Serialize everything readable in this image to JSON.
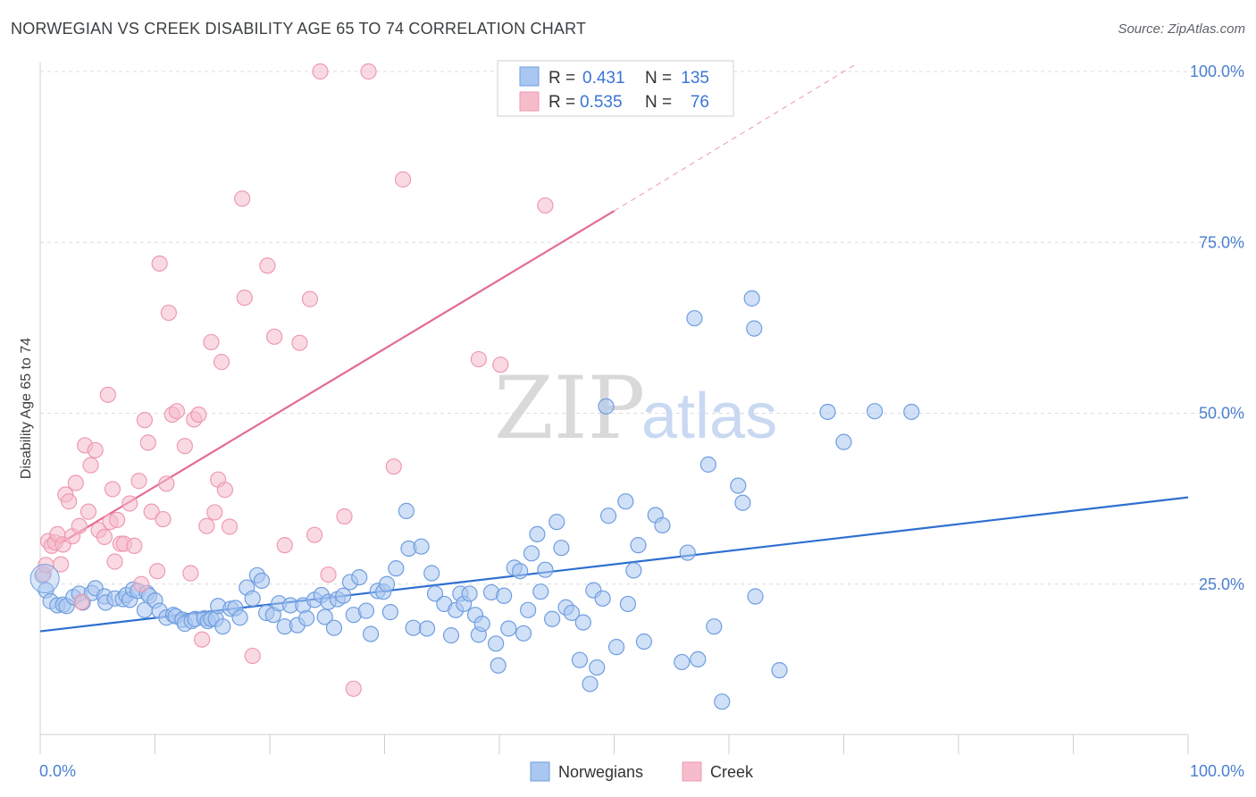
{
  "title": "NORWEGIAN VS CREEK DISABILITY AGE 65 TO 74 CORRELATION CHART",
  "source": "Source: ZipAtlas.com",
  "watermark": {
    "part1": "ZIP",
    "part2": "atlas"
  },
  "colors": {
    "blue_fill": "#a9c7f0",
    "blue_stroke": "#6f9ee0",
    "blue_line": "#2e6fd1",
    "pink_fill": "#f6bccb",
    "pink_stroke": "#ee9ab1",
    "pink_line": "#e46b92",
    "grid": "#dcdcdc",
    "tick_text": "#4a7fd1"
  },
  "legend": {
    "rows": [
      {
        "r_label": "R =",
        "r_value": "0.431",
        "n_label": "N =",
        "n_value": "135",
        "color": "blue"
      },
      {
        "r_label": "R =",
        "r_value": "0.535",
        "n_label": "N =",
        "n_value": "76",
        "color": "pink"
      }
    ]
  },
  "chart_data": {
    "type": "scatter",
    "title": "NORWEGIAN VS CREEK DISABILITY AGE 65 TO 74 CORRELATION CHART",
    "xlabel": "",
    "ylabel": "Disability Age 65 to 74",
    "xlim": [
      0,
      100
    ],
    "ylim": [
      0,
      102
    ],
    "x_tick_labels": [
      "0.0%",
      "100.0%"
    ],
    "y_ticks": [
      25,
      50,
      75,
      100
    ],
    "y_tick_labels": [
      "25.0%",
      "50.0%",
      "75.0%",
      "100.0%"
    ],
    "grid": true,
    "legend_position": "top-center",
    "series": [
      {
        "name": "Norwegians",
        "color": "blue",
        "trendline": {
          "x0": 0,
          "y0": 18.1,
          "x1": 100,
          "y1": 37.7
        },
        "points": [
          [
            0.2,
            26.3
          ],
          [
            0.5,
            24.1
          ],
          [
            0.9,
            22.5
          ],
          [
            1.5,
            21.9
          ],
          [
            2.0,
            22.0
          ],
          [
            2.3,
            21.8
          ],
          [
            2.9,
            23.1
          ],
          [
            3.4,
            23.6
          ],
          [
            3.7,
            22.3
          ],
          [
            4.5,
            23.7
          ],
          [
            4.8,
            24.4
          ],
          [
            5.6,
            23.2
          ],
          [
            5.7,
            22.3
          ],
          [
            6.5,
            22.9
          ],
          [
            7.2,
            22.8
          ],
          [
            7.5,
            23.4
          ],
          [
            7.8,
            22.7
          ],
          [
            8.1,
            24.2
          ],
          [
            8.5,
            24.0
          ],
          [
            9.1,
            21.2
          ],
          [
            9.3,
            23.7
          ],
          [
            9.5,
            23.3
          ],
          [
            10.0,
            22.6
          ],
          [
            10.4,
            21.1
          ],
          [
            11.0,
            20.1
          ],
          [
            11.6,
            20.5
          ],
          [
            11.8,
            20.3
          ],
          [
            12.4,
            19.8
          ],
          [
            12.6,
            19.2
          ],
          [
            13.2,
            19.6
          ],
          [
            13.5,
            19.9
          ],
          [
            14.3,
            20.0
          ],
          [
            14.6,
            19.6
          ],
          [
            14.9,
            19.9
          ],
          [
            15.3,
            19.9
          ],
          [
            15.5,
            21.8
          ],
          [
            15.9,
            18.8
          ],
          [
            16.6,
            21.4
          ],
          [
            17.0,
            21.5
          ],
          [
            17.4,
            20.1
          ],
          [
            18.0,
            24.5
          ],
          [
            18.5,
            22.9
          ],
          [
            18.9,
            26.3
          ],
          [
            19.3,
            25.5
          ],
          [
            19.7,
            20.8
          ],
          [
            20.3,
            20.5
          ],
          [
            20.8,
            22.2
          ],
          [
            21.3,
            18.8
          ],
          [
            21.8,
            21.9
          ],
          [
            22.4,
            19.0
          ],
          [
            22.9,
            21.9
          ],
          [
            23.2,
            20.0
          ],
          [
            23.9,
            22.7
          ],
          [
            24.5,
            23.4
          ],
          [
            24.8,
            20.2
          ],
          [
            25.1,
            22.4
          ],
          [
            25.6,
            18.6
          ],
          [
            25.9,
            22.8
          ],
          [
            26.4,
            23.3
          ],
          [
            27.0,
            25.3
          ],
          [
            27.3,
            20.5
          ],
          [
            27.8,
            26.0
          ],
          [
            28.4,
            21.1
          ],
          [
            28.8,
            17.7
          ],
          [
            29.4,
            24.0
          ],
          [
            29.9,
            23.9
          ],
          [
            30.2,
            25.0
          ],
          [
            30.5,
            20.9
          ],
          [
            31.0,
            27.3
          ],
          [
            31.9,
            35.7
          ],
          [
            32.1,
            30.2
          ],
          [
            32.5,
            18.6
          ],
          [
            33.2,
            30.5
          ],
          [
            33.7,
            18.5
          ],
          [
            34.1,
            26.6
          ],
          [
            34.4,
            23.6
          ],
          [
            35.2,
            22.1
          ],
          [
            35.8,
            17.5
          ],
          [
            36.2,
            21.2
          ],
          [
            36.6,
            23.6
          ],
          [
            36.9,
            22.1
          ],
          [
            37.4,
            23.6
          ],
          [
            37.9,
            20.5
          ],
          [
            38.2,
            17.6
          ],
          [
            38.5,
            19.2
          ],
          [
            39.3,
            23.8
          ],
          [
            39.7,
            16.3
          ],
          [
            39.9,
            13.1
          ],
          [
            40.4,
            23.3
          ],
          [
            40.8,
            18.5
          ],
          [
            41.3,
            27.4
          ],
          [
            41.8,
            26.9
          ],
          [
            42.1,
            17.8
          ],
          [
            42.5,
            21.2
          ],
          [
            42.8,
            29.5
          ],
          [
            43.3,
            32.3
          ],
          [
            43.6,
            23.9
          ],
          [
            44.0,
            27.1
          ],
          [
            44.6,
            19.9
          ],
          [
            45.0,
            34.1
          ],
          [
            45.4,
            30.3
          ],
          [
            45.8,
            21.6
          ],
          [
            46.3,
            20.8
          ],
          [
            47.0,
            13.9
          ],
          [
            47.3,
            19.4
          ],
          [
            47.9,
            10.4
          ],
          [
            48.2,
            24.1
          ],
          [
            48.5,
            12.8
          ],
          [
            49.0,
            22.9
          ],
          [
            49.3,
            51.0
          ],
          [
            49.5,
            35.0
          ],
          [
            50.2,
            15.8
          ],
          [
            51.0,
            37.1
          ],
          [
            51.2,
            22.1
          ],
          [
            51.7,
            27.0
          ],
          [
            52.1,
            30.7
          ],
          [
            52.6,
            16.6
          ],
          [
            53.6,
            35.1
          ],
          [
            54.2,
            33.6
          ],
          [
            55.9,
            13.6
          ],
          [
            56.4,
            29.6
          ],
          [
            57.0,
            63.9
          ],
          [
            57.3,
            14.0
          ],
          [
            58.2,
            42.5
          ],
          [
            58.7,
            18.8
          ],
          [
            59.4,
            7.8
          ],
          [
            60.8,
            39.4
          ],
          [
            61.2,
            36.9
          ],
          [
            62.0,
            66.8
          ],
          [
            62.2,
            62.4
          ],
          [
            62.3,
            23.2
          ],
          [
            64.4,
            12.4
          ],
          [
            68.6,
            50.2
          ],
          [
            70.0,
            45.8
          ],
          [
            72.7,
            50.3
          ],
          [
            75.9,
            50.2
          ]
        ]
      },
      {
        "name": "Creek",
        "color": "pink",
        "trendline": {
          "x0": 1.6,
          "y0": 30.8,
          "x1": 50.0,
          "y1": 79.6,
          "dashed_to": {
            "x": 71.0,
            "y": 101.0
          }
        },
        "points": [
          [
            0.3,
            26.5
          ],
          [
            0.5,
            27.8
          ],
          [
            0.7,
            31.3
          ],
          [
            1.0,
            30.6
          ],
          [
            1.3,
            31.1
          ],
          [
            1.5,
            32.3
          ],
          [
            1.8,
            27.9
          ],
          [
            2.0,
            30.8
          ],
          [
            2.2,
            38.1
          ],
          [
            2.5,
            37.1
          ],
          [
            2.8,
            32.0
          ],
          [
            3.1,
            39.8
          ],
          [
            3.4,
            33.5
          ],
          [
            3.6,
            22.4
          ],
          [
            3.9,
            45.3
          ],
          [
            4.2,
            35.6
          ],
          [
            4.4,
            42.4
          ],
          [
            4.8,
            44.6
          ],
          [
            5.1,
            32.9
          ],
          [
            5.6,
            31.9
          ],
          [
            5.9,
            52.7
          ],
          [
            6.1,
            34.1
          ],
          [
            6.3,
            38.9
          ],
          [
            6.5,
            28.3
          ],
          [
            6.7,
            34.4
          ],
          [
            7.0,
            30.9
          ],
          [
            7.3,
            30.9
          ],
          [
            7.8,
            36.8
          ],
          [
            8.2,
            30.6
          ],
          [
            8.6,
            40.1
          ],
          [
            8.8,
            25.0
          ],
          [
            9.1,
            49.0
          ],
          [
            9.4,
            45.7
          ],
          [
            9.7,
            35.6
          ],
          [
            10.2,
            26.9
          ],
          [
            10.4,
            71.9
          ],
          [
            10.7,
            34.5
          ],
          [
            11.0,
            39.7
          ],
          [
            11.2,
            64.7
          ],
          [
            11.5,
            49.8
          ],
          [
            11.9,
            50.3
          ],
          [
            12.6,
            45.2
          ],
          [
            13.1,
            26.6
          ],
          [
            13.4,
            49.1
          ],
          [
            13.8,
            49.8
          ],
          [
            14.1,
            16.9
          ],
          [
            14.5,
            33.5
          ],
          [
            14.9,
            60.4
          ],
          [
            15.2,
            35.5
          ],
          [
            15.5,
            40.3
          ],
          [
            15.8,
            57.5
          ],
          [
            16.1,
            38.8
          ],
          [
            16.5,
            33.4
          ],
          [
            17.6,
            81.4
          ],
          [
            17.8,
            66.9
          ],
          [
            18.5,
            14.5
          ],
          [
            19.8,
            71.6
          ],
          [
            20.4,
            61.2
          ],
          [
            21.3,
            30.7
          ],
          [
            22.6,
            60.3
          ],
          [
            23.5,
            66.7
          ],
          [
            23.9,
            32.2
          ],
          [
            24.4,
            100.0
          ],
          [
            25.1,
            26.4
          ],
          [
            26.5,
            34.9
          ],
          [
            27.3,
            9.7
          ],
          [
            28.6,
            100.0
          ],
          [
            30.8,
            42.2
          ],
          [
            31.6,
            84.2
          ],
          [
            38.2,
            57.9
          ],
          [
            40.1,
            57.1
          ],
          [
            44.0,
            80.4
          ]
        ]
      }
    ]
  },
  "bottom_legend": [
    {
      "label": "Norwegians",
      "color": "blue"
    },
    {
      "label": "Creek",
      "color": "pink"
    }
  ]
}
